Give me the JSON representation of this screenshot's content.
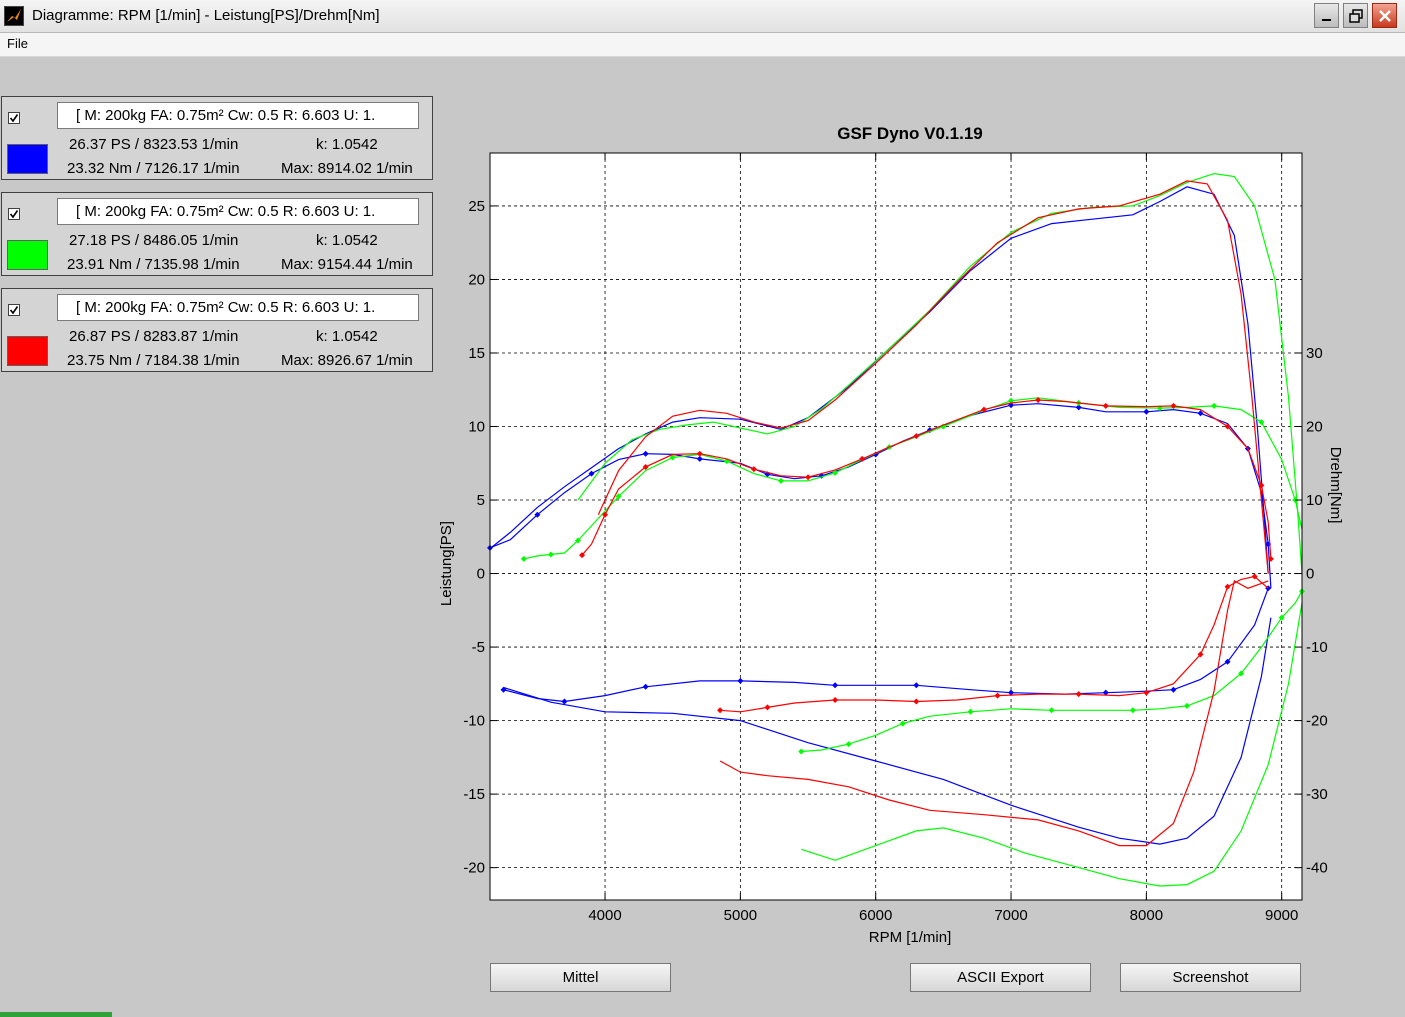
{
  "window": {
    "title": "Diagramme: RPM [1/min] - Leistung[PS]/Drehm[Nm]",
    "app_icon": "matlab-icon",
    "controls": [
      "minimize-icon",
      "maximize-icon",
      "close-icon"
    ]
  },
  "menu": {
    "file_label": "File"
  },
  "runs": [
    {
      "checked": true,
      "color": "#0000ff",
      "info": "[ M: 200kg  FA: 0.75m²  Cw: 0.5  R: 6.603  U: 1.",
      "ps_line": "26.37 PS / 8323.53 1/min",
      "k_line": "k: 1.0542",
      "nm_line": "23.32 Nm / 7126.17 1/min",
      "max_line": "Max: 8914.02 1/min"
    },
    {
      "checked": true,
      "color": "#00ff00",
      "info": "[ M: 200kg  FA: 0.75m²  Cw: 0.5  R: 6.603  U: 1.",
      "ps_line": "27.18 PS / 8486.05 1/min",
      "k_line": "k: 1.0542",
      "nm_line": "23.91 Nm / 7135.98 1/min",
      "max_line": "Max: 9154.44 1/min"
    },
    {
      "checked": true,
      "color": "#ff0000",
      "info": "[ M: 200kg  FA: 0.75m²  Cw: 0.5  R: 6.603  U: 1.",
      "ps_line": "26.87 PS / 8283.87 1/min",
      "k_line": "k: 1.0542",
      "nm_line": "23.75 Nm / 7184.38 1/min",
      "max_line": "Max: 8926.67 1/min"
    }
  ],
  "chart_data": {
    "type": "line",
    "title": "GSF Dyno V0.1.19",
    "xlabel": "RPM [1/min]",
    "ylabel": "Leistung[PS]",
    "y2label": "Drehm[Nm]",
    "xlim": [
      3150,
      9150
    ],
    "ylim": [
      -22.2,
      28.6
    ],
    "y2lim": [
      -44.4,
      57.2
    ],
    "xticks": [
      4000,
      5000,
      6000,
      7000,
      8000,
      9000
    ],
    "yticks": [
      -20,
      -15,
      -10,
      -5,
      0,
      5,
      10,
      15,
      20,
      25
    ],
    "y2ticks": [
      -40,
      -30,
      -20,
      -10,
      0,
      10,
      20,
      30
    ],
    "grid": true,
    "series": [
      {
        "color": "#0000ff",
        "power_ps": [
          [
            3150,
            1.7
          ],
          [
            3300,
            2.8
          ],
          [
            3500,
            4.5
          ],
          [
            3700,
            5.9
          ],
          [
            3900,
            7.2
          ],
          [
            4100,
            8.5
          ],
          [
            4300,
            9.5
          ],
          [
            4500,
            10.3
          ],
          [
            4700,
            10.6
          ],
          [
            5000,
            10.5
          ],
          [
            5300,
            9.8
          ],
          [
            5500,
            10.6
          ],
          [
            5800,
            12.7
          ],
          [
            6100,
            15.3
          ],
          [
            6400,
            17.8
          ],
          [
            6700,
            20.6
          ],
          [
            7000,
            22.8
          ],
          [
            7300,
            23.8
          ],
          [
            7600,
            24.1
          ],
          [
            7900,
            24.4
          ],
          [
            8100,
            25.3
          ],
          [
            8300,
            26.3
          ],
          [
            8500,
            25.8
          ],
          [
            8650,
            23.0
          ],
          [
            8750,
            17.0
          ],
          [
            8820,
            10.0
          ],
          [
            8870,
            4.0
          ],
          [
            8900,
            0.0
          ]
        ],
        "torque_nm": [
          [
            3150,
            3.5
          ],
          [
            3300,
            4.6
          ],
          [
            3500,
            8.0
          ],
          [
            3700,
            11.0
          ],
          [
            3900,
            13.6
          ],
          [
            4100,
            15.5
          ],
          [
            4300,
            16.3
          ],
          [
            4500,
            16.2
          ],
          [
            4700,
            15.6
          ],
          [
            5000,
            15.0
          ],
          [
            5200,
            13.5
          ],
          [
            5400,
            12.9
          ],
          [
            5600,
            13.3
          ],
          [
            5800,
            14.5
          ],
          [
            6000,
            16.2
          ],
          [
            6200,
            18.0
          ],
          [
            6400,
            19.5
          ],
          [
            6700,
            21.5
          ],
          [
            7000,
            22.9
          ],
          [
            7200,
            23.1
          ],
          [
            7500,
            22.6
          ],
          [
            7700,
            22.0
          ],
          [
            8000,
            22.0
          ],
          [
            8200,
            22.3
          ],
          [
            8400,
            21.8
          ],
          [
            8600,
            20.4
          ],
          [
            8750,
            17.0
          ],
          [
            8850,
            11.0
          ],
          [
            8900,
            4.0
          ],
          [
            8920,
            -2.0
          ]
        ],
        "decel_ps": [
          [
            3250,
            -7.9
          ],
          [
            3500,
            -8.5
          ],
          [
            3700,
            -8.7
          ],
          [
            4000,
            -8.3
          ],
          [
            4300,
            -7.7
          ],
          [
            4700,
            -7.3
          ],
          [
            5000,
            -7.3
          ],
          [
            5400,
            -7.4
          ],
          [
            5700,
            -7.6
          ],
          [
            6000,
            -7.6
          ],
          [
            6300,
            -7.6
          ],
          [
            6700,
            -7.9
          ],
          [
            7000,
            -8.1
          ],
          [
            7400,
            -8.2
          ],
          [
            7700,
            -8.1
          ],
          [
            8000,
            -8.0
          ],
          [
            8200,
            -7.9
          ],
          [
            8400,
            -7.2
          ],
          [
            8600,
            -6.0
          ],
          [
            8800,
            -3.5
          ],
          [
            8900,
            -1.0
          ]
        ],
        "decel_nm": [
          [
            3250,
            -15.5
          ],
          [
            3600,
            -17.5
          ],
          [
            4000,
            -18.8
          ],
          [
            4500,
            -19.0
          ],
          [
            5000,
            -20.0
          ],
          [
            5500,
            -23.0
          ],
          [
            6000,
            -25.5
          ],
          [
            6500,
            -28.0
          ],
          [
            7000,
            -31.5
          ],
          [
            7500,
            -34.5
          ],
          [
            7800,
            -36.0
          ],
          [
            8100,
            -36.8
          ],
          [
            8300,
            -36.0
          ],
          [
            8500,
            -33.0
          ],
          [
            8700,
            -25.0
          ],
          [
            8850,
            -14.0
          ],
          [
            8920,
            -6.0
          ]
        ]
      },
      {
        "color": "#00ff00",
        "power_ps": [
          [
            3800,
            5.0
          ],
          [
            4000,
            7.5
          ],
          [
            4200,
            9.1
          ],
          [
            4400,
            9.8
          ],
          [
            4600,
            10.1
          ],
          [
            4800,
            10.3
          ],
          [
            5000,
            9.9
          ],
          [
            5200,
            9.5
          ],
          [
            5400,
            10.0
          ],
          [
            5600,
            11.2
          ],
          [
            5800,
            12.8
          ],
          [
            6100,
            15.3
          ],
          [
            6400,
            17.9
          ],
          [
            6700,
            20.9
          ],
          [
            7000,
            23.2
          ],
          [
            7300,
            24.5
          ],
          [
            7600,
            24.9
          ],
          [
            7900,
            25.0
          ],
          [
            8100,
            25.7
          ],
          [
            8300,
            26.6
          ],
          [
            8500,
            27.2
          ],
          [
            8650,
            27.0
          ],
          [
            8800,
            25.0
          ],
          [
            8950,
            20.0
          ],
          [
            9050,
            12.0
          ],
          [
            9120,
            4.0
          ],
          [
            9150,
            0.0
          ]
        ],
        "torque_nm": [
          [
            3400,
            2.0
          ],
          [
            3500,
            2.4
          ],
          [
            3600,
            2.6
          ],
          [
            3700,
            2.8
          ],
          [
            3800,
            4.5
          ],
          [
            3950,
            7.5
          ],
          [
            4100,
            10.5
          ],
          [
            4300,
            14.0
          ],
          [
            4500,
            15.8
          ],
          [
            4700,
            16.2
          ],
          [
            4900,
            15.3
          ],
          [
            5100,
            13.6
          ],
          [
            5300,
            12.6
          ],
          [
            5500,
            12.6
          ],
          [
            5700,
            13.7
          ],
          [
            5900,
            15.5
          ],
          [
            6100,
            17.2
          ],
          [
            6300,
            18.6
          ],
          [
            6500,
            20.0
          ],
          [
            6800,
            22.2
          ],
          [
            7000,
            23.5
          ],
          [
            7200,
            23.9
          ],
          [
            7500,
            23.2
          ],
          [
            7800,
            22.6
          ],
          [
            8100,
            22.5
          ],
          [
            8300,
            22.6
          ],
          [
            8500,
            22.8
          ],
          [
            8700,
            22.3
          ],
          [
            8850,
            20.6
          ],
          [
            9000,
            15.5
          ],
          [
            9100,
            10.0
          ],
          [
            9150,
            6.0
          ]
        ],
        "decel_ps": [
          [
            5450,
            -12.1
          ],
          [
            5600,
            -12.0
          ],
          [
            5800,
            -11.6
          ],
          [
            6000,
            -11.0
          ],
          [
            6200,
            -10.2
          ],
          [
            6400,
            -9.7
          ],
          [
            6700,
            -9.4
          ],
          [
            7000,
            -9.2
          ],
          [
            7300,
            -9.3
          ],
          [
            7600,
            -9.3
          ],
          [
            7900,
            -9.3
          ],
          [
            8100,
            -9.2
          ],
          [
            8300,
            -9.0
          ],
          [
            8500,
            -8.3
          ],
          [
            8700,
            -6.8
          ],
          [
            8850,
            -5.0
          ],
          [
            9000,
            -3.0
          ],
          [
            9100,
            -2.0
          ],
          [
            9150,
            -1.2
          ]
        ],
        "decel_nm": [
          [
            5450,
            -37.5
          ],
          [
            5700,
            -39.0
          ],
          [
            6000,
            -37.0
          ],
          [
            6300,
            -35.0
          ],
          [
            6500,
            -34.6
          ],
          [
            6800,
            -36.0
          ],
          [
            7100,
            -38.0
          ],
          [
            7500,
            -40.0
          ],
          [
            7800,
            -41.5
          ],
          [
            8100,
            -42.5
          ],
          [
            8300,
            -42.3
          ],
          [
            8500,
            -40.5
          ],
          [
            8700,
            -35.0
          ],
          [
            8900,
            -26.0
          ],
          [
            9050,
            -15.0
          ],
          [
            9150,
            -4.0
          ]
        ]
      },
      {
        "color": "#ff0000",
        "power_ps": [
          [
            3950,
            4.0
          ],
          [
            4100,
            7.0
          ],
          [
            4300,
            9.3
          ],
          [
            4500,
            10.7
          ],
          [
            4700,
            11.1
          ],
          [
            4900,
            10.9
          ],
          [
            5100,
            10.3
          ],
          [
            5300,
            9.9
          ],
          [
            5500,
            10.4
          ],
          [
            5700,
            11.8
          ],
          [
            6000,
            14.3
          ],
          [
            6300,
            16.9
          ],
          [
            6600,
            19.8
          ],
          [
            6900,
            22.5
          ],
          [
            7200,
            24.2
          ],
          [
            7500,
            24.8
          ],
          [
            7800,
            25.0
          ],
          [
            8100,
            25.8
          ],
          [
            8300,
            26.7
          ],
          [
            8450,
            26.5
          ],
          [
            8600,
            24.0
          ],
          [
            8700,
            19.0
          ],
          [
            8780,
            12.0
          ],
          [
            8850,
            5.0
          ],
          [
            8900,
            0.0
          ]
        ],
        "torque_nm": [
          [
            3830,
            2.5
          ],
          [
            3900,
            4.0
          ],
          [
            4000,
            8.0
          ],
          [
            4100,
            11.5
          ],
          [
            4300,
            14.5
          ],
          [
            4500,
            16.2
          ],
          [
            4700,
            16.3
          ],
          [
            4900,
            15.6
          ],
          [
            5100,
            14.2
          ],
          [
            5300,
            13.3
          ],
          [
            5500,
            13.1
          ],
          [
            5700,
            14.1
          ],
          [
            5900,
            15.6
          ],
          [
            6100,
            17.2
          ],
          [
            6300,
            18.7
          ],
          [
            6500,
            20.2
          ],
          [
            6800,
            22.3
          ],
          [
            7000,
            23.2
          ],
          [
            7200,
            23.6
          ],
          [
            7400,
            23.4
          ],
          [
            7700,
            22.8
          ],
          [
            8000,
            22.7
          ],
          [
            8200,
            22.8
          ],
          [
            8400,
            22.3
          ],
          [
            8600,
            20.0
          ],
          [
            8750,
            17.0
          ],
          [
            8850,
            12.0
          ],
          [
            8900,
            7.0
          ],
          [
            8920,
            2.0
          ]
        ],
        "decel_ps": [
          [
            4850,
            -9.3
          ],
          [
            5000,
            -9.4
          ],
          [
            5200,
            -9.1
          ],
          [
            5400,
            -8.8
          ],
          [
            5700,
            -8.6
          ],
          [
            6000,
            -8.6
          ],
          [
            6300,
            -8.7
          ],
          [
            6600,
            -8.6
          ],
          [
            6900,
            -8.3
          ],
          [
            7200,
            -8.2
          ],
          [
            7500,
            -8.2
          ],
          [
            7800,
            -8.3
          ],
          [
            8000,
            -8.1
          ],
          [
            8200,
            -7.5
          ],
          [
            8400,
            -5.5
          ],
          [
            8500,
            -3.5
          ],
          [
            8600,
            -0.9
          ],
          [
            8700,
            -0.4
          ],
          [
            8800,
            -0.2
          ],
          [
            8900,
            -1.0
          ]
        ],
        "decel_nm": [
          [
            4850,
            -25.5
          ],
          [
            5000,
            -27.0
          ],
          [
            5200,
            -27.5
          ],
          [
            5500,
            -28.0
          ],
          [
            5800,
            -29.0
          ],
          [
            6100,
            -30.8
          ],
          [
            6400,
            -32.2
          ],
          [
            6800,
            -32.8
          ],
          [
            7200,
            -33.5
          ],
          [
            7500,
            -35.0
          ],
          [
            7800,
            -37.0
          ],
          [
            8000,
            -37.0
          ],
          [
            8200,
            -34.0
          ],
          [
            8350,
            -27.0
          ],
          [
            8500,
            -16.0
          ],
          [
            8600,
            -5.0
          ],
          [
            8650,
            -1.0
          ],
          [
            8750,
            -2.0
          ],
          [
            8900,
            -1.0
          ]
        ]
      }
    ]
  },
  "buttons": {
    "mittel": "Mittel",
    "ascii_export": "ASCII Export",
    "screenshot": "Screenshot"
  }
}
